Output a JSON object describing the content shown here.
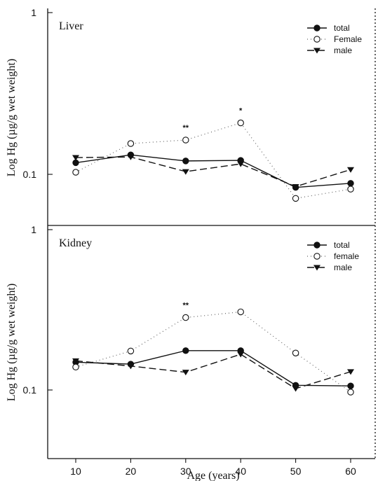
{
  "chart_data": [
    {
      "type": "line",
      "title": "Liver",
      "ylabel": "Log Hg (µg/g wet weight)",
      "yscale": "log",
      "ylim": [
        0.05,
        1.0
      ],
      "yticks": [
        "1",
        "0.1"
      ],
      "x": [
        10,
        20,
        30,
        40,
        50,
        60
      ],
      "series": [
        {
          "name": "total",
          "marker": "filled-circle",
          "line": "solid",
          "values": [
            0.118,
            0.132,
            0.121,
            0.122,
            0.083,
            0.088
          ]
        },
        {
          "name": "Female",
          "marker": "open-circle",
          "line": "dotted",
          "values": [
            0.103,
            0.155,
            0.163,
            0.208,
            0.071,
            0.081
          ]
        },
        {
          "name": "male",
          "marker": "filled-triangle",
          "line": "dashed",
          "values": [
            0.127,
            0.128,
            0.104,
            0.116,
            0.084,
            0.107
          ]
        }
      ],
      "annotations": [
        {
          "x": 30,
          "text": "**"
        },
        {
          "x": 40,
          "text": "*"
        }
      ],
      "legend": "top-right"
    },
    {
      "type": "line",
      "title": "Kidney",
      "ylabel": "Log Hg (µg/g wet weight)",
      "yscale": "log",
      "ylim": [
        0.05,
        1.0
      ],
      "yticks": [
        "1",
        "0.1"
      ],
      "x": [
        10,
        20,
        30,
        40,
        50,
        60
      ],
      "xticks": [
        "10",
        "20",
        "30",
        "40",
        "50",
        "60"
      ],
      "xlabel": "Age (years)",
      "series": [
        {
          "name": "total",
          "marker": "filled-circle",
          "line": "solid",
          "values": [
            0.149,
            0.145,
            0.176,
            0.176,
            0.107,
            0.106
          ]
        },
        {
          "name": "female",
          "marker": "open-circle",
          "line": "dotted",
          "values": [
            0.139,
            0.175,
            0.283,
            0.307,
            0.17,
            0.097
          ]
        },
        {
          "name": "male",
          "marker": "filled-triangle",
          "line": "dashed",
          "values": [
            0.152,
            0.141,
            0.129,
            0.167,
            0.102,
            0.13
          ]
        }
      ],
      "annotations": [
        {
          "x": 30,
          "text": "**"
        }
      ],
      "legend": "top-right"
    }
  ]
}
